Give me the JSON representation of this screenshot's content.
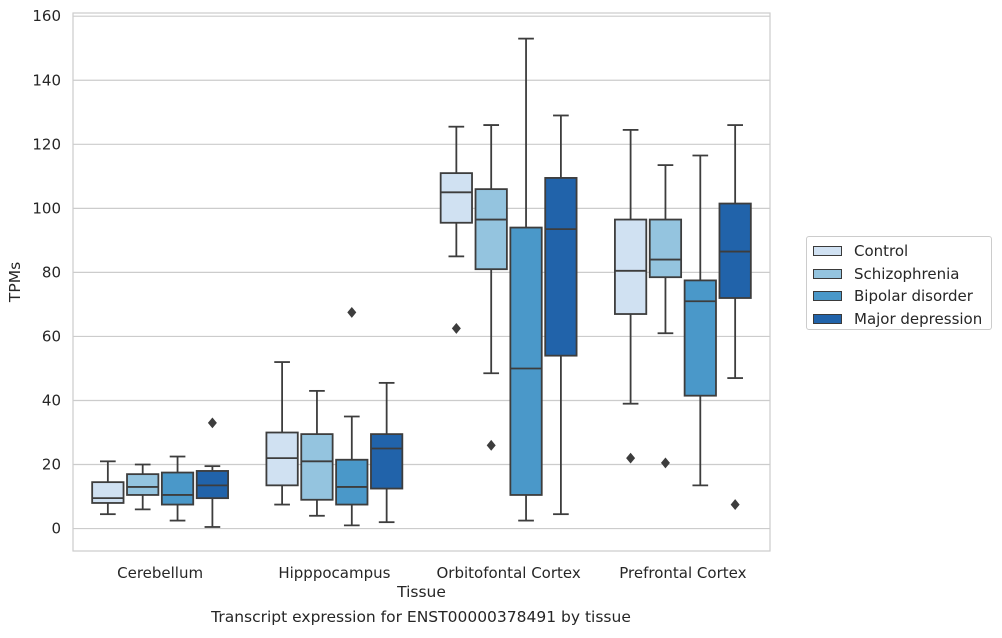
{
  "chart_data": {
    "type": "box",
    "title": "",
    "xlabel": "Tissue",
    "ylabel": "TPMs",
    "caption": "Transcript expression for ENST00000378491 by tissue",
    "categories": [
      "Cerebellum",
      "Hipppocampus",
      "Orbitofontal Cortex",
      "Prefrontal Cortex"
    ],
    "ylim": [
      -7,
      161
    ],
    "yticks": [
      0,
      20,
      40,
      60,
      80,
      100,
      120,
      140,
      160
    ],
    "grid": "horizontal",
    "legend_position": "right",
    "series": [
      {
        "name": "Control",
        "color": "#d0e1f2",
        "boxes": [
          {
            "whislo": 4.5,
            "q1": 8,
            "med": 9.5,
            "q3": 14.5,
            "whishi": 21,
            "fliers": []
          },
          {
            "whislo": 7.5,
            "q1": 13.5,
            "med": 22,
            "q3": 30,
            "whishi": 52,
            "fliers": []
          },
          {
            "whislo": 85,
            "q1": 95.5,
            "med": 105,
            "q3": 111,
            "whishi": 125.5,
            "fliers": [
              62.5
            ]
          },
          {
            "whislo": 39,
            "q1": 67,
            "med": 80.5,
            "q3": 96.5,
            "whishi": 124.5,
            "fliers": [
              22
            ]
          }
        ]
      },
      {
        "name": "Schizophrenia",
        "color": "#94c4df",
        "boxes": [
          {
            "whislo": 6,
            "q1": 10.5,
            "med": 13,
            "q3": 17,
            "whishi": 20,
            "fliers": []
          },
          {
            "whislo": 4,
            "q1": 9,
            "med": 21,
            "q3": 29.5,
            "whishi": 43,
            "fliers": []
          },
          {
            "whislo": 48.5,
            "q1": 81,
            "med": 96.5,
            "q3": 106,
            "whishi": 126,
            "fliers": [
              26
            ]
          },
          {
            "whislo": 61,
            "q1": 78.5,
            "med": 84,
            "q3": 96.5,
            "whishi": 113.5,
            "fliers": [
              20.5
            ]
          }
        ]
      },
      {
        "name": "Bipolar disorder",
        "color": "#4a98c9",
        "boxes": [
          {
            "whislo": 2.5,
            "q1": 7.5,
            "med": 10.5,
            "q3": 17.5,
            "whishi": 22.5,
            "fliers": []
          },
          {
            "whislo": 1,
            "q1": 7.5,
            "med": 13,
            "q3": 21.5,
            "whishi": 35,
            "fliers": [
              67.5
            ]
          },
          {
            "whislo": 2.5,
            "q1": 10.5,
            "med": 50,
            "q3": 94,
            "whishi": 153,
            "fliers": []
          },
          {
            "whislo": 13.5,
            "q1": 41.5,
            "med": 71,
            "q3": 77.5,
            "whishi": 116.5,
            "fliers": []
          }
        ]
      },
      {
        "name": "Major depression",
        "color": "#2163aa",
        "boxes": [
          {
            "whislo": 0.5,
            "q1": 9.5,
            "med": 13.5,
            "q3": 18,
            "whishi": 19.5,
            "fliers": [
              33
            ]
          },
          {
            "whislo": 2,
            "q1": 12.5,
            "med": 25,
            "q3": 29.5,
            "whishi": 45.5,
            "fliers": []
          },
          {
            "whislo": 4.5,
            "q1": 54,
            "med": 93.5,
            "q3": 109.5,
            "whishi": 129,
            "fliers": []
          },
          {
            "whislo": 47,
            "q1": 72,
            "med": 86.5,
            "q3": 101.5,
            "whishi": 126,
            "fliers": [
              7.5
            ]
          }
        ]
      }
    ]
  }
}
